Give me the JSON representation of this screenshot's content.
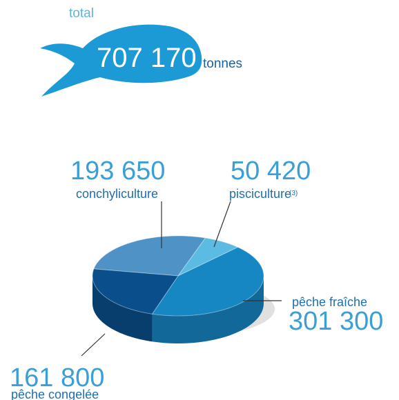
{
  "chart_data": {
    "type": "pie",
    "total_caption": "total",
    "total": 707170,
    "total_label": "707 170",
    "unit": "tonnes",
    "categories": [
      "conchyliculture",
      "pisciculture",
      "pêche fraîche",
      "pêche congelée"
    ],
    "values": [
      193650,
      50420,
      301300,
      161800
    ],
    "value_labels": [
      "193 650",
      "50 420",
      "301 300",
      "161 800"
    ],
    "colors": [
      "#4f93c6",
      "#5cbbe3",
      "#1787c4",
      "#0a4f8c"
    ],
    "annotations": [
      "(3)"
    ]
  }
}
